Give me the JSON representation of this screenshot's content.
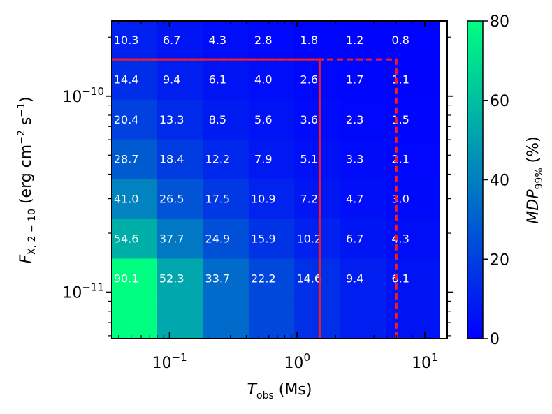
{
  "chart_data": {
    "type": "heatmap",
    "x_values": [
      0.0458,
      0.104,
      0.238,
      0.543,
      1.24,
      2.83,
      6.46
    ],
    "x_edges": [
      0.0353,
      0.08,
      0.182,
      0.417,
      0.952,
      2.17,
      4.95,
      13.0
    ],
    "xlim": [
      0.0353,
      15.0
    ],
    "x_scale": "log",
    "x_ticks": [
      0.1,
      1,
      10
    ],
    "x_tick_labels": [
      {
        "base": "10",
        "exp": "−1"
      },
      {
        "base": "10",
        "exp": "0"
      },
      {
        "base": "10",
        "exp": "1"
      }
    ],
    "y_values": [
      7.41e-12,
      1.18e-11,
      1.88e-11,
      3e-11,
      4.79e-11,
      7.63e-11,
      1.22e-10,
      1.94e-10
    ],
    "y_edges": [
      5.8e-12,
      9.38e-12,
      1.49e-11,
      2.38e-11,
      3.8e-11,
      6.05e-11,
      9.64e-11,
      1.54e-10,
      2.42e-10
    ],
    "ylim": [
      5.8e-12,
      2.42e-10
    ],
    "y_scale": "log",
    "y_ticks": [
      1e-11,
      1e-10
    ],
    "y_tick_labels": [
      {
        "base": "10",
        "exp": "−11"
      },
      {
        "base": "10",
        "exp": "−10"
      }
    ],
    "z": [
      [
        null,
        null,
        null,
        null,
        null,
        null,
        null
      ],
      [
        90.1,
        52.3,
        33.7,
        22.2,
        14.6,
        9.4,
        6.1
      ],
      [
        54.6,
        37.7,
        24.9,
        15.9,
        10.2,
        6.7,
        4.3
      ],
      [
        41.0,
        26.5,
        17.5,
        10.9,
        7.2,
        4.7,
        3.0
      ],
      [
        28.7,
        18.4,
        12.2,
        7.9,
        5.1,
        3.3,
        2.1
      ],
      [
        20.4,
        13.3,
        8.5,
        5.6,
        3.6,
        2.3,
        1.5
      ],
      [
        14.4,
        9.4,
        6.1,
        4.0,
        2.6,
        1.7,
        1.1
      ],
      [
        10.3,
        6.7,
        4.3,
        2.8,
        1.8,
        1.2,
        0.8
      ]
    ],
    "colormap": "winter",
    "color_low": "#0000ff",
    "color_high": "#00ff80",
    "zlim": [
      0,
      80
    ],
    "colorbar_ticks": [
      "0",
      "20",
      "40",
      "60",
      "80"
    ],
    "xlabel": {
      "main": "T",
      "sub": "obs",
      "unit": " (Ms)"
    },
    "ylabel": {
      "main": "F",
      "sub": "X, 2 − 10",
      "unit_pre": " (erg cm",
      "exp1": "−2",
      "mid": " s",
      "exp2": "−1",
      "unit_post": ")"
    },
    "colorbar_label": {
      "main": "MDP",
      "sub": "99%",
      "unit": " (%)"
    },
    "annotations": [
      {
        "style": "solid",
        "color": "#ff1a1a",
        "x_corner": 1.5,
        "y_top": 1.54e-10
      },
      {
        "style": "dashed",
        "color": "#ff1a1a",
        "x_corner": 6.0,
        "y_top": 1.54e-10
      }
    ],
    "grid": false
  }
}
